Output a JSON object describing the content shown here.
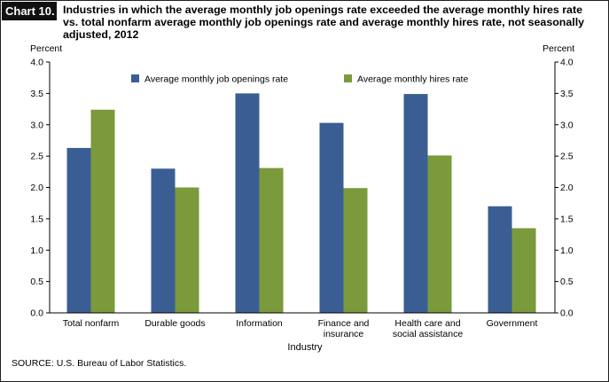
{
  "chart_label": "Chart 10.",
  "title": "Industries in which the average monthly job openings rate exceeded the average monthly hires rate vs. total nonfarm average monthly job openings rate and average monthly hires rate, not seasonally adjusted, 2012",
  "source": "SOURCE: U.S. Bureau of Labor Statistics.",
  "chart_data": {
    "type": "bar",
    "categories": [
      [
        "Total nonfarm"
      ],
      [
        "Durable goods"
      ],
      [
        "Information"
      ],
      [
        "Finance and",
        "insurance"
      ],
      [
        "Health care and",
        "social assistance"
      ],
      [
        "Government"
      ]
    ],
    "series": [
      {
        "name": "Average monthly job openings rate",
        "color": "#3A5E94",
        "values": [
          2.63,
          2.3,
          3.5,
          3.03,
          3.49,
          1.7
        ]
      },
      {
        "name": "Average monthly hires rate",
        "color": "#7A9A3C",
        "values": [
          3.24,
          2.0,
          2.31,
          1.99,
          2.51,
          1.35
        ]
      }
    ],
    "xlabel": "Industry",
    "ylabel_left": "Percent",
    "ylabel_right": "Percent",
    "ylim": [
      0,
      4.0
    ],
    "yticks": [
      "0.0",
      "0.5",
      "1.0",
      "1.5",
      "2.0",
      "2.5",
      "3.0",
      "3.5",
      "4.0"
    ],
    "legend_position": "top-center",
    "grid": false
  }
}
